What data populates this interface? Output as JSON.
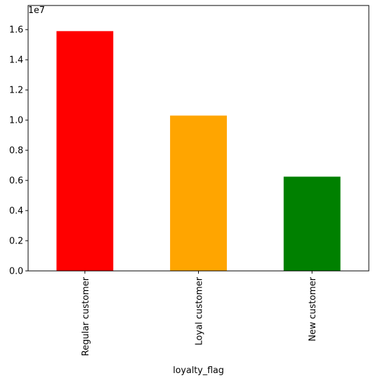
{
  "chart_data": {
    "type": "bar",
    "categories": [
      "Regular customer",
      "Loyal customer",
      "New customer"
    ],
    "values": [
      15900000,
      10300000,
      6250000
    ],
    "colors": [
      "#ff0000",
      "#ffa500",
      "#008000"
    ],
    "xlabel": "loyalty_flag",
    "ylabel": "",
    "ylim": [
      0,
      17600000
    ],
    "y_ticks": [
      0,
      2000000,
      4000000,
      6000000,
      8000000,
      10000000,
      12000000,
      14000000,
      16000000
    ],
    "y_tick_labels": [
      "0.0",
      "0.2",
      "0.4",
      "0.6",
      "0.8",
      "1.0",
      "1.2",
      "1.4",
      "1.6"
    ],
    "y_offset_label": "1e7",
    "x_tick_rotation": "vertical",
    "grid": false,
    "legend": "none"
  }
}
